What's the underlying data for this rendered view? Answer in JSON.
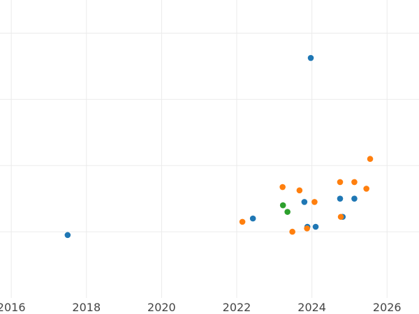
{
  "chart_data": {
    "type": "scatter",
    "title": "",
    "xlabel": "",
    "ylabel": "",
    "grid": true,
    "legend": "none",
    "xlim": [
      2015.7,
      2026.85
    ],
    "ylim": [
      0,
      9
    ],
    "x_ticks": [
      2016,
      2018,
      2020,
      2022,
      2024,
      2026
    ],
    "x_tick_labels": [
      "2016",
      "2018",
      "2020",
      "2022",
      "2024",
      "2026"
    ],
    "y_gridlines": [
      2,
      4,
      6,
      8
    ],
    "series": [
      {
        "color": "#1f77b4",
        "points": [
          {
            "x": 2017.5,
            "y": 1.9
          },
          {
            "x": 2022.43,
            "y": 2.4
          },
          {
            "x": 2023.8,
            "y": 2.9
          },
          {
            "x": 2023.88,
            "y": 2.15
          },
          {
            "x": 2023.97,
            "y": 7.25
          },
          {
            "x": 2024.1,
            "y": 2.15
          },
          {
            "x": 2024.75,
            "y": 3.0
          },
          {
            "x": 2024.82,
            "y": 2.45
          },
          {
            "x": 2025.13,
            "y": 3.0
          }
        ]
      },
      {
        "color": "#ff7f0e",
        "points": [
          {
            "x": 2022.15,
            "y": 2.3
          },
          {
            "x": 2023.22,
            "y": 3.35
          },
          {
            "x": 2023.48,
            "y": 2.0
          },
          {
            "x": 2023.67,
            "y": 3.25
          },
          {
            "x": 2023.87,
            "y": 2.1
          },
          {
            "x": 2024.07,
            "y": 2.9
          },
          {
            "x": 2024.75,
            "y": 3.5
          },
          {
            "x": 2024.77,
            "y": 2.45
          },
          {
            "x": 2025.13,
            "y": 3.5
          },
          {
            "x": 2025.45,
            "y": 3.3
          },
          {
            "x": 2025.55,
            "y": 4.2
          }
        ]
      },
      {
        "color": "#2ca02c",
        "points": [
          {
            "x": 2023.23,
            "y": 2.8
          },
          {
            "x": 2023.35,
            "y": 2.6
          }
        ]
      }
    ]
  }
}
